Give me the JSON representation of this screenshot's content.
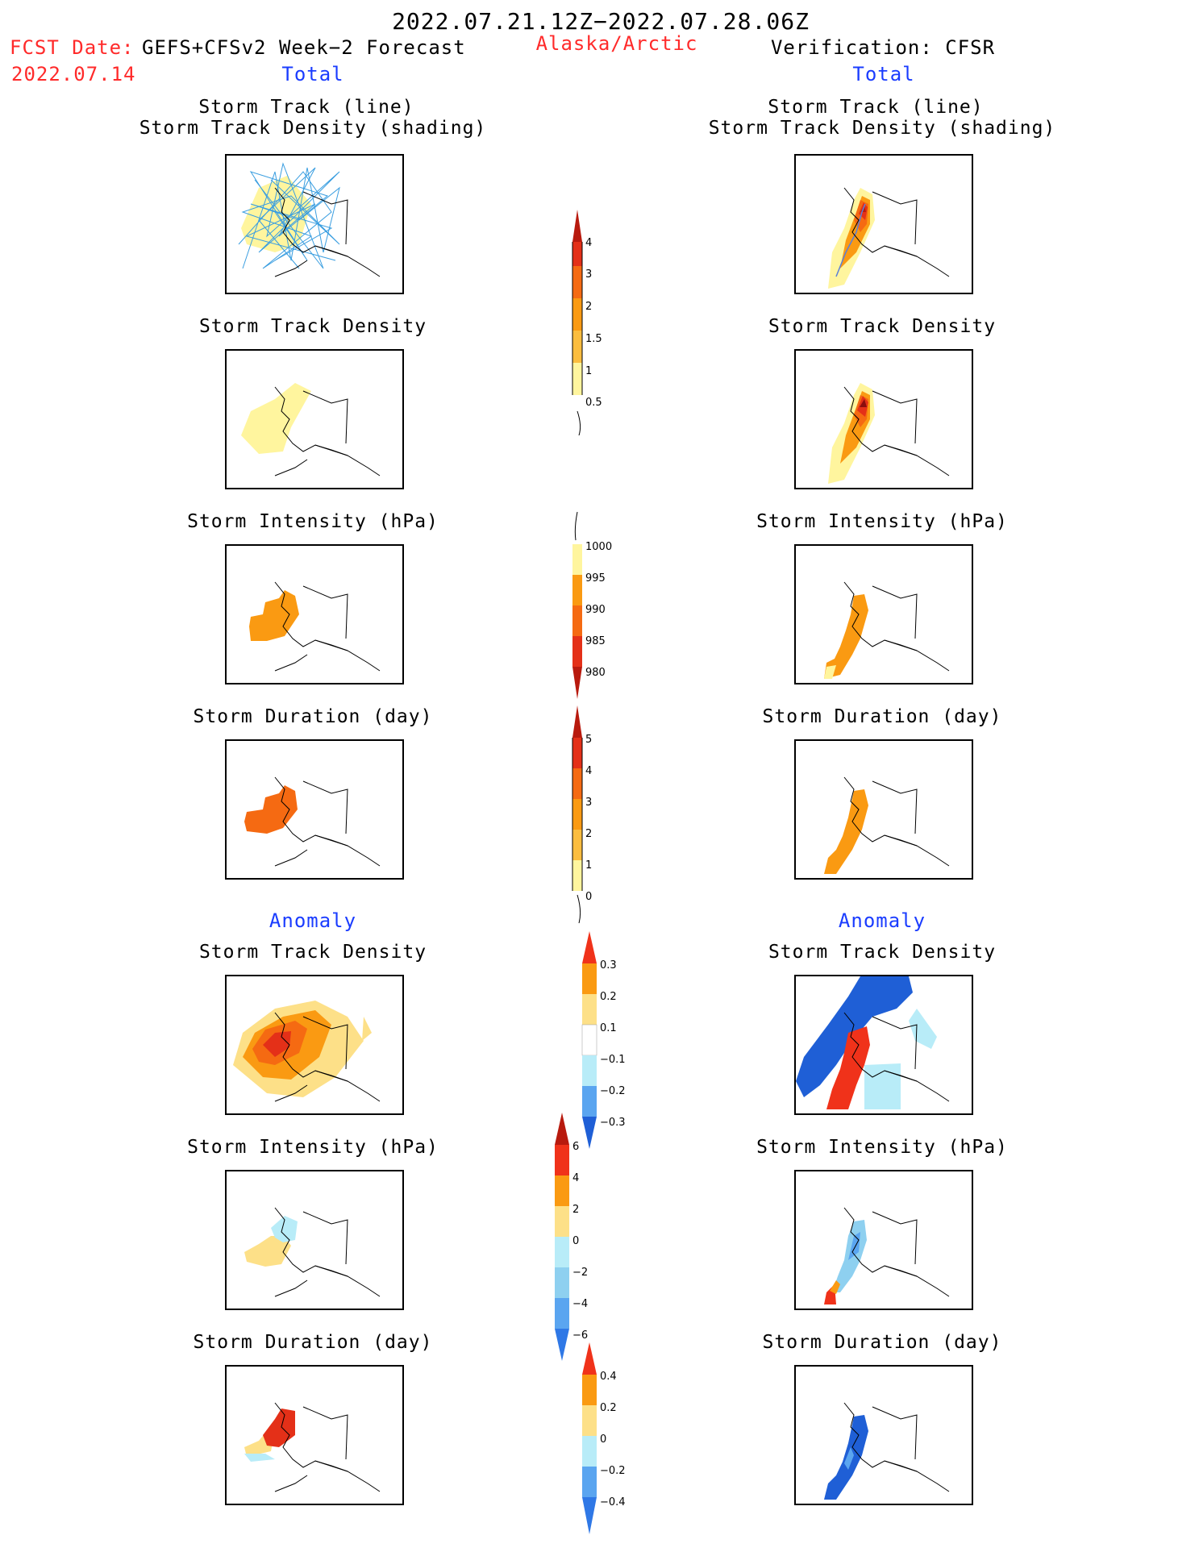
{
  "header": {
    "period": "2022.07.21.12Z−2022.07.28.06Z",
    "fcst_label": "FCST Date:",
    "fcst_model": "GEFS+CFSv2 Week−2 Forecast",
    "fcst_date": "2022.07.14",
    "region": "Alaska/Arctic",
    "verification": "Verification: CFSR",
    "left_total": "Total",
    "right_total": "Total",
    "left_anomaly": "Anomaly",
    "right_anomaly": "Anomaly"
  },
  "titles": {
    "track_line": "Storm Track (line)",
    "track_shading": "Storm Track Density (shading)",
    "density": "Storm Track Density",
    "intensity": "Storm Intensity (hPa)",
    "duration": "Storm Duration (day)"
  },
  "colorbars": {
    "density_total": [
      "0.5",
      "1",
      "1.5",
      "2",
      "3",
      "4"
    ],
    "intensity_total": [
      "1000",
      "995",
      "990",
      "985",
      "980"
    ],
    "duration_total": [
      "0",
      "1",
      "2",
      "3",
      "4",
      "5"
    ],
    "density_anom": [
      "0.3",
      "0.2",
      "0.1",
      "−0.1",
      "−0.2",
      "−0.3"
    ],
    "intensity_anom": [
      "6",
      "4",
      "2",
      "0",
      "−2",
      "−4",
      "−6"
    ],
    "duration_anom": [
      "0.4",
      "0.2",
      "0",
      "−0.2",
      "−0.4"
    ]
  },
  "colors": {
    "lightyellow": "#fff59e",
    "yellow": "#fde088",
    "gold": "#fbbd3f",
    "orange": "#fa9a12",
    "darkorange": "#f56a12",
    "red": "#e43018",
    "darkred": "#b81a0e",
    "maroon": "#8a0e0e",
    "paleblue": "#b8ecf8",
    "lightblue": "#8ed0f0",
    "midblue": "#5aa5f0",
    "blue": "#2f78e6",
    "darkblue": "#1f5fd6",
    "track": "#3a9ee0"
  }
}
